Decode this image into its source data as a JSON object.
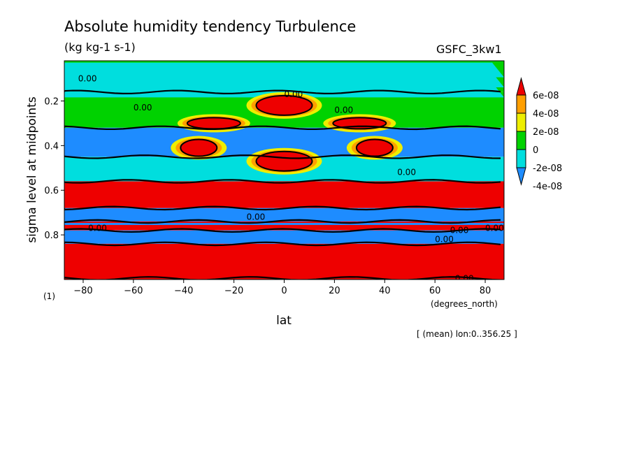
{
  "chart_data": {
    "type": "heatmap",
    "title": "Absolute humidity tendency Turbulence",
    "subtitle": "(kg kg-1 s-1)",
    "dataset_label": "GSFC_3kw1",
    "xlabel": "lat",
    "x_unit_label": "(degrees_north)",
    "ylabel": "sigma level at midpoints",
    "panel_label": "(1)",
    "footer": "[ (mean) lon:0..356.25 ]",
    "xlim": [
      -87.5,
      87.5
    ],
    "ylim": [
      1.0,
      0.02
    ],
    "y_inverted": true,
    "x_ticks": [
      -80,
      -60,
      -40,
      -20,
      0,
      20,
      40,
      60,
      80
    ],
    "x_tick_labels": [
      "−80",
      "−60",
      "−40",
      "−20",
      "0",
      "20",
      "40",
      "60",
      "80"
    ],
    "y_ticks": [
      0.2,
      0.4,
      0.6,
      0.8
    ],
    "y_tick_labels": [
      "0.2",
      "0.4",
      "0.6",
      "0.8"
    ],
    "colorbar": {
      "levels": [
        "6e-08",
        "4e-08",
        "2e-08",
        "0",
        "-2e-08",
        "-4e-08"
      ],
      "colors": [
        "#ee0000",
        "#ff9f00",
        "#eeee00",
        "#00d200",
        "#00dede",
        "#1e8cff"
      ]
    },
    "bands": [
      {
        "y_from": 0.02,
        "y_to": 0.16,
        "value": 0.0,
        "note": "alternating near-zero green/cyan"
      },
      {
        "y_from": 0.16,
        "y_to": 0.32,
        "value": 1e-08
      },
      {
        "y_from": 0.32,
        "y_to": 0.45,
        "value": -4e-08
      },
      {
        "y_from": 0.45,
        "y_to": 0.56,
        "value": -2e-08
      },
      {
        "y_from": 0.56,
        "y_to": 0.68,
        "value": 6e-08
      },
      {
        "y_from": 0.68,
        "y_to": 0.74,
        "value": -4e-08
      },
      {
        "y_from": 0.74,
        "y_to": 0.78,
        "value": 6e-08
      },
      {
        "y_from": 0.78,
        "y_to": 0.84,
        "value": -4e-08
      },
      {
        "y_from": 0.84,
        "y_to": 1.0,
        "value": 6e-08
      }
    ],
    "features": [
      {
        "lat": 0,
        "sigma": 0.22,
        "value": 6e-08
      },
      {
        "lat": 0,
        "sigma": 0.47,
        "value": 6e-08
      },
      {
        "lat": -34,
        "sigma": 0.41,
        "value": 6e-08
      },
      {
        "lat": 36,
        "sigma": 0.41,
        "value": 6e-08
      },
      {
        "lat": -28,
        "sigma": 0.3,
        "value": 6e-08
      },
      {
        "lat": 30,
        "sigma": 0.3,
        "value": 6e-08
      }
    ],
    "contour_labels": [
      "0.00",
      "0.00",
      "0.00",
      "0.00",
      "0.00",
      "0.00",
      "0.00",
      "0.00",
      "0.00",
      "0.00",
      "0.00"
    ]
  }
}
